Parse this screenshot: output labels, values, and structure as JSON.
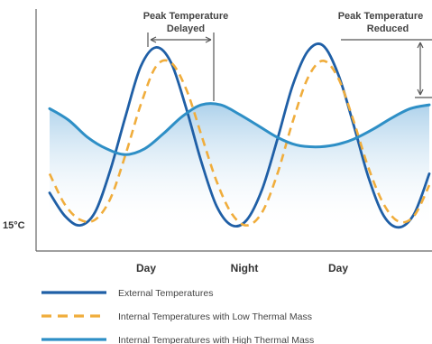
{
  "chart_data": {
    "type": "line",
    "title": "",
    "xlabel": "",
    "ylabel": "",
    "y_tick_label": "15°C",
    "x_tick_labels": [
      "Day",
      "Night",
      "Day"
    ],
    "annotations": [
      "Peak Temperature Delayed",
      "Peak Temperature Reduced"
    ],
    "grid": false,
    "legend_position": "bottom",
    "x_range": [
      0,
      1
    ],
    "y_range": [
      0,
      1
    ],
    "series": [
      {
        "name": "External Temperatures",
        "color": "#1f5fa6",
        "style": "solid",
        "x": [
          0.0,
          0.04,
          0.08,
          0.12,
          0.16,
          0.2,
          0.24,
          0.28,
          0.32,
          0.36,
          0.4,
          0.44,
          0.48,
          0.52,
          0.56,
          0.6,
          0.64,
          0.68,
          0.72,
          0.76,
          0.8,
          0.84,
          0.88,
          0.92,
          0.96,
          1.0
        ],
        "y": [
          0.2,
          0.08,
          0.03,
          0.1,
          0.32,
          0.6,
          0.86,
          0.96,
          0.88,
          0.64,
          0.36,
          0.13,
          0.03,
          0.06,
          0.22,
          0.48,
          0.76,
          0.94,
          0.97,
          0.82,
          0.56,
          0.28,
          0.08,
          0.02,
          0.09,
          0.3
        ]
      },
      {
        "name": "Internal Temperatures with Low Thermal Mass",
        "color": "#f0ad3c",
        "style": "dashed",
        "x": [
          0.0,
          0.04,
          0.08,
          0.12,
          0.16,
          0.2,
          0.24,
          0.28,
          0.32,
          0.36,
          0.4,
          0.44,
          0.48,
          0.52,
          0.56,
          0.6,
          0.64,
          0.68,
          0.72,
          0.76,
          0.8,
          0.84,
          0.88,
          0.92,
          0.96,
          1.0
        ],
        "y": [
          0.3,
          0.14,
          0.06,
          0.06,
          0.17,
          0.4,
          0.66,
          0.86,
          0.88,
          0.74,
          0.5,
          0.26,
          0.09,
          0.03,
          0.1,
          0.3,
          0.57,
          0.8,
          0.89,
          0.8,
          0.58,
          0.33,
          0.14,
          0.05,
          0.08,
          0.24
        ]
      },
      {
        "name": "Internal Temperatures with High Thermal Mass",
        "color": "#2e8fc6",
        "style": "solid",
        "x": [
          0.0,
          0.05,
          0.1,
          0.15,
          0.2,
          0.25,
          0.3,
          0.35,
          0.4,
          0.45,
          0.5,
          0.55,
          0.6,
          0.65,
          0.7,
          0.75,
          0.8,
          0.85,
          0.9,
          0.95,
          1.0
        ],
        "y": [
          0.64,
          0.58,
          0.49,
          0.43,
          0.4,
          0.43,
          0.51,
          0.6,
          0.66,
          0.66,
          0.61,
          0.55,
          0.49,
          0.45,
          0.44,
          0.45,
          0.48,
          0.53,
          0.59,
          0.64,
          0.66
        ]
      }
    ]
  }
}
